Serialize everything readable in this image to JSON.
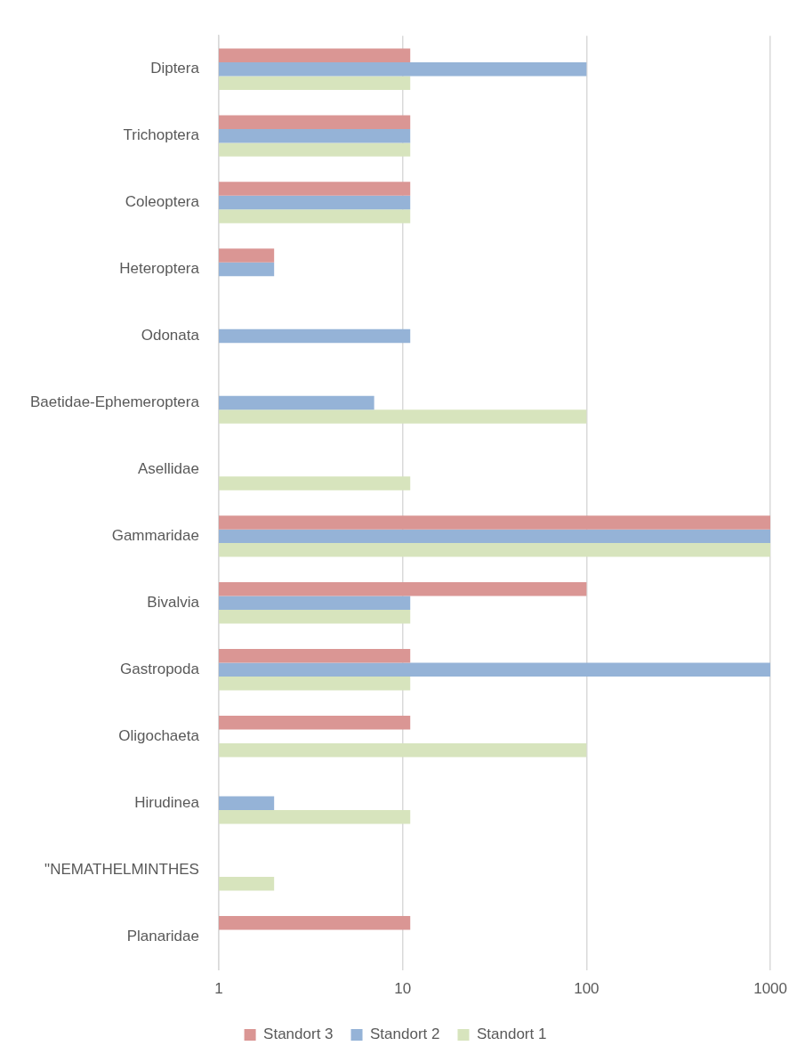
{
  "chart_data": {
    "type": "bar",
    "orientation": "horizontal",
    "log": "x",
    "categories": [
      "Diptera",
      "Trichoptera",
      "Coleoptera",
      "Heteroptera",
      "Odonata",
      "Baetidae-Ephemeroptera",
      "Asellidae",
      "Gammaridae",
      "Bivalvia",
      "Gastropoda",
      "Oligochaeta",
      "Hirudinea",
      "\"NEMATHELMINTHES",
      "Planaridae"
    ],
    "series": [
      {
        "name": "Standort 3",
        "color": "#da9694",
        "values": [
          11,
          11,
          11,
          2,
          null,
          null,
          null,
          1000,
          100,
          11,
          11,
          null,
          null,
          11
        ]
      },
      {
        "name": "Standort 2",
        "color": "#95b3d7",
        "values": [
          100,
          11,
          11,
          2,
          11,
          7,
          null,
          1000,
          11,
          1000,
          null,
          2,
          null,
          null
        ]
      },
      {
        "name": "Standort 1",
        "color": "#d7e4bd",
        "values": [
          11,
          11,
          11,
          null,
          null,
          100,
          11,
          1000,
          11,
          11,
          100,
          11,
          2,
          null
        ]
      }
    ],
    "xlim": [
      1,
      1000
    ],
    "xticks": [
      1,
      10,
      100,
      1000
    ],
    "grid": "x",
    "legend": "bottom"
  }
}
